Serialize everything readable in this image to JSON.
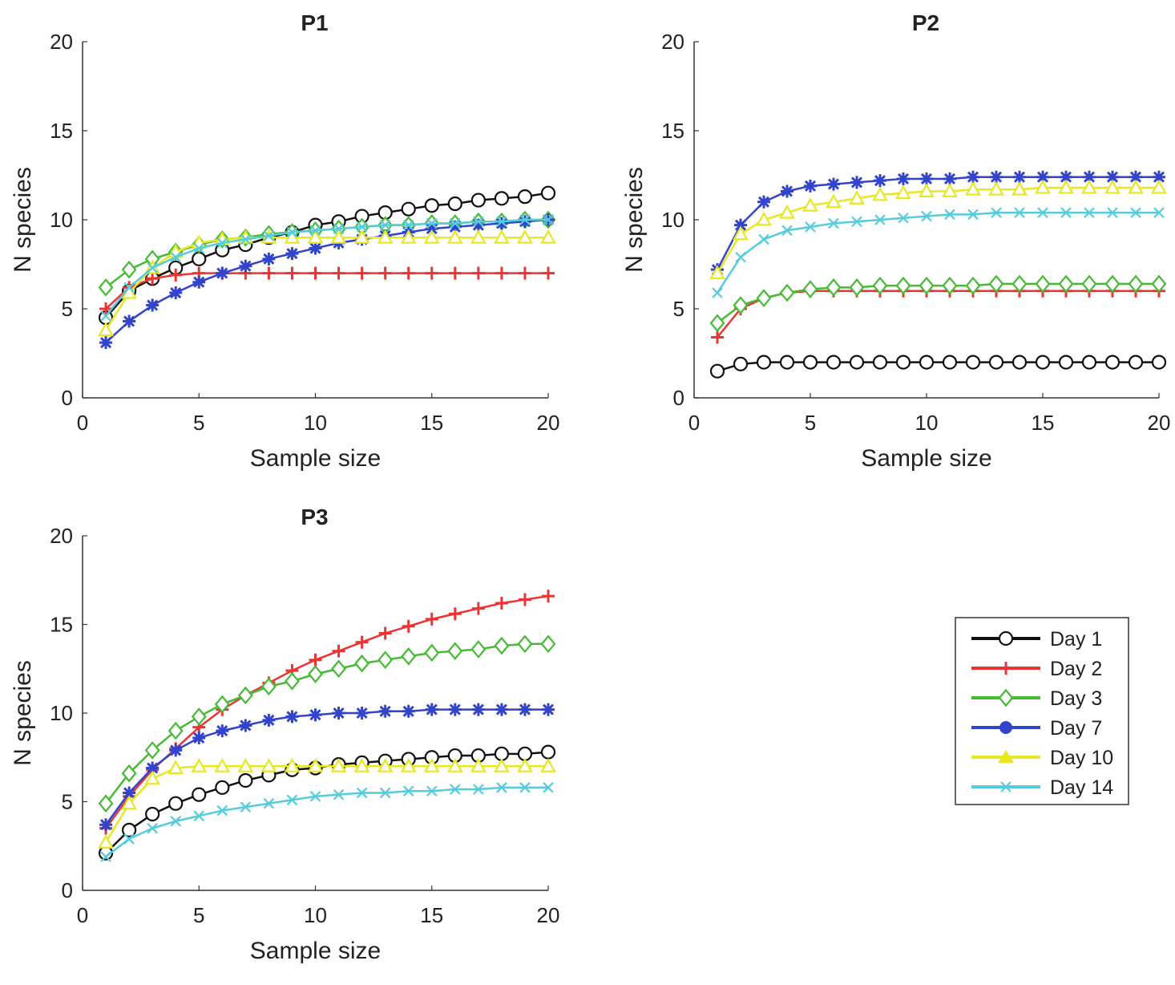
{
  "chart_data": [
    {
      "type": "line",
      "title": "P1",
      "xlabel": "Sample size",
      "ylabel": "N species",
      "xlim": [
        0,
        20
      ],
      "ylim": [
        0,
        20
      ],
      "xticks": [
        0,
        5,
        10,
        15,
        20
      ],
      "yticks": [
        0,
        5,
        10,
        15,
        20
      ],
      "grid": false,
      "x": [
        1,
        2,
        3,
        4,
        5,
        6,
        7,
        8,
        9,
        10,
        11,
        12,
        13,
        14,
        15,
        16,
        17,
        18,
        19,
        20
      ],
      "series": [
        {
          "name": "Day 1",
          "values": [
            4.5,
            6.0,
            6.7,
            7.3,
            7.8,
            8.3,
            8.6,
            9.0,
            9.3,
            9.7,
            9.9,
            10.2,
            10.4,
            10.6,
            10.8,
            10.9,
            11.1,
            11.2,
            11.3,
            11.5
          ]
        },
        {
          "name": "Day 2",
          "values": [
            5.0,
            6.2,
            6.7,
            6.9,
            7.0,
            7.0,
            7.0,
            7.0,
            7.0,
            7.0,
            7.0,
            7.0,
            7.0,
            7.0,
            7.0,
            7.0,
            7.0,
            7.0,
            7.0,
            7.0
          ]
        },
        {
          "name": "Day 3",
          "values": [
            6.2,
            7.2,
            7.8,
            8.2,
            8.6,
            8.9,
            9.0,
            9.2,
            9.3,
            9.4,
            9.5,
            9.6,
            9.7,
            9.7,
            9.8,
            9.8,
            9.9,
            9.9,
            10.0,
            10.0
          ]
        },
        {
          "name": "Day 7",
          "values": [
            3.1,
            4.3,
            5.2,
            5.9,
            6.5,
            7.0,
            7.4,
            7.8,
            8.1,
            8.4,
            8.7,
            8.9,
            9.1,
            9.3,
            9.5,
            9.6,
            9.7,
            9.8,
            9.9,
            10.0
          ]
        },
        {
          "name": "Day 10",
          "values": [
            3.8,
            5.9,
            7.3,
            8.2,
            8.7,
            8.9,
            9.0,
            9.0,
            9.0,
            9.0,
            9.0,
            9.0,
            9.0,
            9.0,
            9.0,
            9.0,
            9.0,
            9.0,
            9.0,
            9.0
          ]
        },
        {
          "name": "Day 14",
          "values": [
            4.6,
            6.2,
            7.3,
            7.9,
            8.4,
            8.7,
            8.9,
            9.1,
            9.3,
            9.4,
            9.5,
            9.6,
            9.7,
            9.7,
            9.8,
            9.8,
            9.9,
            9.9,
            10.0,
            10.0
          ]
        }
      ]
    },
    {
      "type": "line",
      "title": "P2",
      "xlabel": "Sample size",
      "ylabel": "N species",
      "xlim": [
        0,
        20
      ],
      "ylim": [
        0,
        20
      ],
      "xticks": [
        0,
        5,
        10,
        15,
        20
      ],
      "yticks": [
        0,
        5,
        10,
        15,
        20
      ],
      "grid": false,
      "x": [
        1,
        2,
        3,
        4,
        5,
        6,
        7,
        8,
        9,
        10,
        11,
        12,
        13,
        14,
        15,
        16,
        17,
        18,
        19,
        20
      ],
      "series": [
        {
          "name": "Day 1",
          "values": [
            1.5,
            1.9,
            2.0,
            2.0,
            2.0,
            2.0,
            2.0,
            2.0,
            2.0,
            2.0,
            2.0,
            2.0,
            2.0,
            2.0,
            2.0,
            2.0,
            2.0,
            2.0,
            2.0,
            2.0
          ]
        },
        {
          "name": "Day 2",
          "values": [
            3.4,
            5.0,
            5.6,
            5.9,
            6.0,
            6.0,
            6.0,
            6.0,
            6.0,
            6.0,
            6.0,
            6.0,
            6.0,
            6.0,
            6.0,
            6.0,
            6.0,
            6.0,
            6.0,
            6.0
          ]
        },
        {
          "name": "Day 3",
          "values": [
            4.2,
            5.2,
            5.6,
            5.9,
            6.1,
            6.2,
            6.2,
            6.3,
            6.3,
            6.3,
            6.3,
            6.3,
            6.4,
            6.4,
            6.4,
            6.4,
            6.4,
            6.4,
            6.4,
            6.4
          ]
        },
        {
          "name": "Day 7",
          "values": [
            7.2,
            9.7,
            11.0,
            11.6,
            11.9,
            12.0,
            12.1,
            12.2,
            12.3,
            12.3,
            12.3,
            12.4,
            12.4,
            12.4,
            12.4,
            12.4,
            12.4,
            12.4,
            12.4,
            12.4
          ]
        },
        {
          "name": "Day 10",
          "values": [
            7.0,
            9.2,
            10.0,
            10.4,
            10.8,
            11.0,
            11.2,
            11.4,
            11.5,
            11.6,
            11.6,
            11.7,
            11.7,
            11.7,
            11.8,
            11.8,
            11.8,
            11.8,
            11.8,
            11.8
          ]
        },
        {
          "name": "Day 14",
          "values": [
            5.9,
            7.9,
            8.9,
            9.4,
            9.6,
            9.8,
            9.9,
            10.0,
            10.1,
            10.2,
            10.3,
            10.3,
            10.4,
            10.4,
            10.4,
            10.4,
            10.4,
            10.4,
            10.4,
            10.4
          ]
        }
      ]
    },
    {
      "type": "line",
      "title": "P3",
      "xlabel": "Sample size",
      "ylabel": "N species",
      "xlim": [
        0,
        20
      ],
      "ylim": [
        0,
        20
      ],
      "xticks": [
        0,
        5,
        10,
        15,
        20
      ],
      "yticks": [
        0,
        5,
        10,
        15,
        20
      ],
      "grid": false,
      "x": [
        1,
        2,
        3,
        4,
        5,
        6,
        7,
        8,
        9,
        10,
        11,
        12,
        13,
        14,
        15,
        16,
        17,
        18,
        19,
        20
      ],
      "series": [
        {
          "name": "Day 1",
          "values": [
            2.1,
            3.4,
            4.3,
            4.9,
            5.4,
            5.8,
            6.2,
            6.5,
            6.8,
            6.9,
            7.1,
            7.2,
            7.3,
            7.4,
            7.5,
            7.6,
            7.6,
            7.7,
            7.7,
            7.8
          ]
        },
        {
          "name": "Day 2",
          "values": [
            3.5,
            5.3,
            6.8,
            8.0,
            9.2,
            10.2,
            11.0,
            11.7,
            12.4,
            13.0,
            13.5,
            14.0,
            14.5,
            14.9,
            15.3,
            15.6,
            15.9,
            16.2,
            16.4,
            16.6
          ]
        },
        {
          "name": "Day 3",
          "values": [
            4.9,
            6.6,
            7.9,
            9.0,
            9.8,
            10.5,
            11.0,
            11.5,
            11.8,
            12.2,
            12.5,
            12.8,
            13.0,
            13.2,
            13.4,
            13.5,
            13.6,
            13.8,
            13.9,
            13.9
          ]
        },
        {
          "name": "Day 7",
          "values": [
            3.7,
            5.5,
            6.9,
            7.9,
            8.6,
            9.0,
            9.3,
            9.6,
            9.8,
            9.9,
            10.0,
            10.0,
            10.1,
            10.1,
            10.2,
            10.2,
            10.2,
            10.2,
            10.2,
            10.2
          ]
        },
        {
          "name": "Day 10",
          "values": [
            2.7,
            4.9,
            6.3,
            6.9,
            7.0,
            7.0,
            7.0,
            7.0,
            7.0,
            7.0,
            7.0,
            7.0,
            7.0,
            7.0,
            7.0,
            7.0,
            7.0,
            7.0,
            7.0,
            7.0
          ]
        },
        {
          "name": "Day 14",
          "values": [
            1.9,
            2.9,
            3.5,
            3.9,
            4.2,
            4.5,
            4.7,
            4.9,
            5.1,
            5.3,
            5.4,
            5.5,
            5.5,
            5.6,
            5.6,
            5.7,
            5.7,
            5.8,
            5.8,
            5.8
          ]
        }
      ]
    }
  ],
  "legend": {
    "placement": "bottom-right",
    "entries": [
      {
        "label": "Day 1",
        "color": "#111111",
        "marker": "circle"
      },
      {
        "label": "Day 2",
        "color": "#ee3333",
        "marker": "plus"
      },
      {
        "label": "Day 3",
        "color": "#44bb33",
        "marker": "diamond"
      },
      {
        "label": "Day 7",
        "color": "#3344cc",
        "marker": "asterisk"
      },
      {
        "label": "Day 10",
        "color": "#e8e822",
        "marker": "triangle"
      },
      {
        "label": "Day 14",
        "color": "#55ccdd",
        "marker": "x"
      }
    ]
  }
}
